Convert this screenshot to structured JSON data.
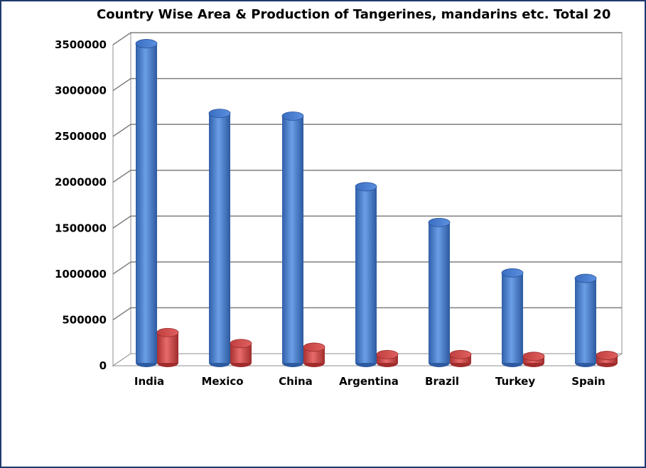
{
  "chart_data": {
    "type": "bar",
    "title": "Country Wise Area & Production of Tangerines, mandarins etc. Total 20",
    "categories": [
      "India",
      "Mexico",
      "China",
      "Argentina",
      "Brazil",
      "Turkey",
      "Spain"
    ],
    "series": [
      {
        "values": [
          3450000,
          2690000,
          2660000,
          1890000,
          1500000,
          950000,
          890000
        ],
        "color": "#4f86d6"
      },
      {
        "values": [
          300000,
          180000,
          140000,
          60000,
          60000,
          40000,
          50000
        ],
        "color": "#d64545"
      }
    ],
    "yticks": [
      "0",
      "500000",
      "1000000",
      "1500000",
      "2000000",
      "2500000",
      "3000000",
      "3500000"
    ],
    "ylim": [
      0,
      3500000
    ],
    "grid": true,
    "legend": "none",
    "frame_color": "#1f3a6d"
  }
}
